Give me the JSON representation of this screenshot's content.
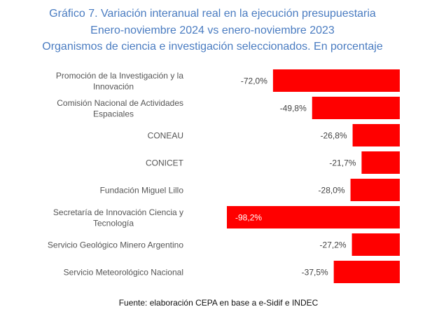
{
  "chart_data": {
    "type": "bar",
    "orientation": "horizontal",
    "title": [
      "Gráfico 7. Variación interanual real en la ejecución presupuestaria",
      "Enero-noviembre 2024 vs enero-noviembre 2023",
      "Organismos de ciencia e investigación seleccionados. En porcentaje"
    ],
    "categories": [
      [
        "Promoción de la Investigación y la",
        "Innovación"
      ],
      [
        "Comisión Nacional de Actividades",
        "Espaciales"
      ],
      [
        "CONEAU"
      ],
      [
        "CONICET"
      ],
      [
        "Fundación Miguel Lillo"
      ],
      [
        "Secretaría de Innovación Ciencia y",
        "Tecnología"
      ],
      [
        "Servicio Geológico Minero Argentino"
      ],
      [
        "Servicio Meteorológico Nacional"
      ]
    ],
    "values": [
      -72.0,
      -49.8,
      -26.8,
      -21.7,
      -28.0,
      -98.2,
      -27.2,
      -37.5
    ],
    "data_labels": [
      "-72,0%",
      "-49,8%",
      "-26,8%",
      "-21,7%",
      "-28,0%",
      "-98,2%",
      "-27,2%",
      "-37,5%"
    ],
    "xlim": [
      -100,
      0
    ],
    "grid": false,
    "bar_color": "#ff0000",
    "source": "Fuente: elaboración CEPA en base a e-Sidif e INDEC"
  }
}
